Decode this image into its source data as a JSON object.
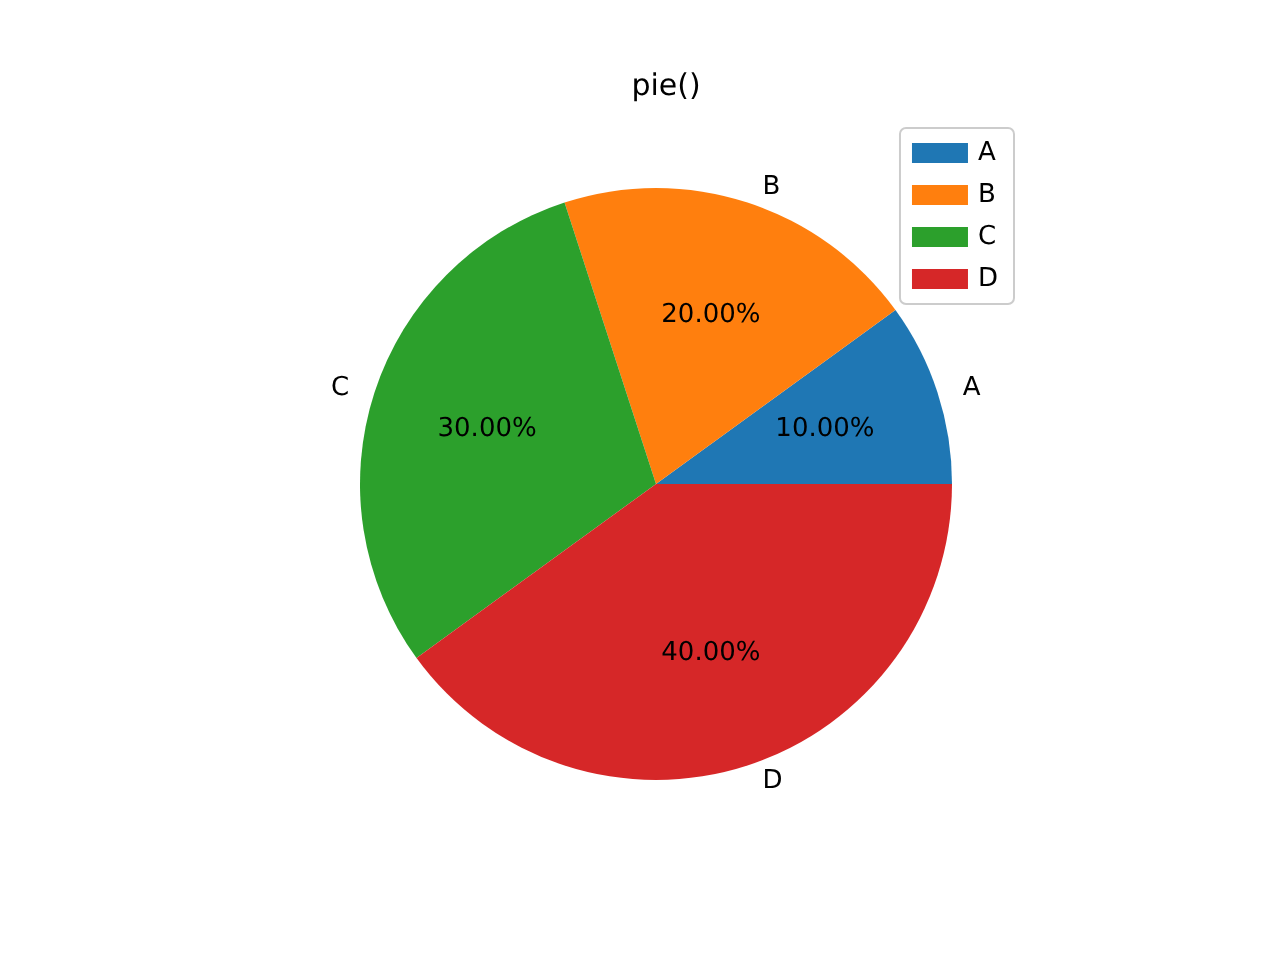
{
  "chart_data": {
    "type": "pie",
    "title": "pie()",
    "categories": [
      "A",
      "B",
      "C",
      "D"
    ],
    "values": [
      10,
      20,
      30,
      40
    ],
    "colors": [
      "#1f77b4",
      "#ff7f0e",
      "#2ca02c",
      "#d62728"
    ],
    "value_labels": [
      "10.00%",
      "20.00%",
      "30.00%",
      "40.00%"
    ],
    "legend": "top right"
  }
}
